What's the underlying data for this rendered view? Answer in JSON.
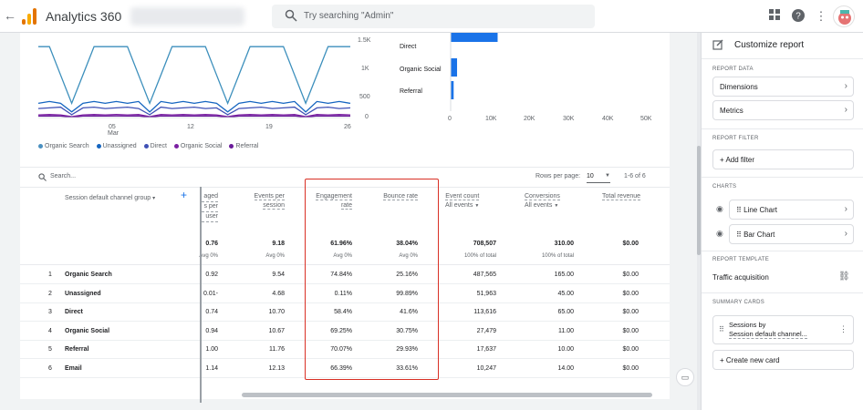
{
  "topbar": {
    "product": "Analytics 360",
    "search_placeholder": "Try searching \"Admin\""
  },
  "chart": {
    "y_ticks": [
      "1.5K",
      "1K",
      "500",
      "0"
    ],
    "x_ticks": [
      "05",
      "12",
      "19",
      "26"
    ],
    "x_month": "Mar",
    "legend": [
      {
        "label": "Organic Search",
        "color": "#4a90c0"
      },
      {
        "label": "Unassigned",
        "color": "#1565c0"
      },
      {
        "label": "Direct",
        "color": "#3f51b5"
      },
      {
        "label": "Organic Social",
        "color": "#7b1fa2"
      },
      {
        "label": "Referral",
        "color": "#6a1b9a"
      }
    ],
    "bar_categories": [
      "Direct",
      "Organic Social",
      "Referral"
    ],
    "bar_values": [
      11000,
      1500,
      700
    ],
    "bar_ticks": [
      "0",
      "10K",
      "20K",
      "30K",
      "40K",
      "50K"
    ],
    "bar_color": "#1a73e8",
    "line_colors": [
      "#3c8fbc",
      "#1565c0",
      "#3f51b5",
      "#7b1fa2",
      "#6a1b9a"
    ]
  },
  "table": {
    "search_placeholder": "Search...",
    "rows_per_page_label": "Rows per page:",
    "rows_per_page": "10",
    "range": "1-6 of 6",
    "dimension_header": "Session default channel group",
    "col_partial": [
      "aged",
      "s per",
      "user"
    ],
    "col_events_per_session": [
      "Events per",
      "session"
    ],
    "col_engagement_rate": [
      "Engagement",
      "rate"
    ],
    "col_bounce_rate": "Bounce rate",
    "col_event_count": "Event count",
    "col_event_count_sub": "All events",
    "col_conversions": "Conversions",
    "col_conversions_sub": "All events",
    "col_total_revenue": "Total revenue",
    "totals": {
      "partial": "0.76",
      "partial_sub": "Avg 0%",
      "eps": "9.18",
      "eps_sub": "Avg 0%",
      "engagement": "61.96%",
      "engagement_sub": "Avg 0%",
      "bounce": "38.04%",
      "bounce_sub": "Avg 0%",
      "events": "708,507",
      "events_sub": "100% of total",
      "conversions": "310.00",
      "conversions_sub": "100% of total",
      "revenue": "$0.00"
    },
    "rows": [
      {
        "n": "1",
        "name": "Organic Search",
        "partial": "0.92",
        "eps": "9.54",
        "eng": "74.84%",
        "bounce": "25.16%",
        "events": "487,565",
        "conv": "165.00",
        "rev": "$0.00"
      },
      {
        "n": "2",
        "name": "Unassigned",
        "partial": "-0.01",
        "eps": "4.68",
        "eng": "0.11%",
        "bounce": "99.89%",
        "events": "51,963",
        "conv": "45.00",
        "rev": "$0.00"
      },
      {
        "n": "3",
        "name": "Direct",
        "partial": "0.74",
        "eps": "10.70",
        "eng": "58.4%",
        "bounce": "41.6%",
        "events": "113,616",
        "conv": "65.00",
        "rev": "$0.00"
      },
      {
        "n": "4",
        "name": "Organic Social",
        "partial": "0.94",
        "eps": "10.67",
        "eng": "69.25%",
        "bounce": "30.75%",
        "events": "27,479",
        "conv": "11.00",
        "rev": "$0.00"
      },
      {
        "n": "5",
        "name": "Referral",
        "partial": "1.00",
        "eps": "11.76",
        "eng": "70.07%",
        "bounce": "29.93%",
        "events": "17,637",
        "conv": "10.00",
        "rev": "$0.00"
      },
      {
        "n": "6",
        "name": "Email",
        "partial": "1.14",
        "eps": "12.13",
        "eng": "66.39%",
        "bounce": "33.61%",
        "events": "10,247",
        "conv": "14.00",
        "rev": "$0.00"
      }
    ]
  },
  "panel": {
    "title": "Customize report",
    "report_data_label": "REPORT DATA",
    "dimensions": "Dimensions",
    "metrics": "Metrics",
    "report_filter_label": "REPORT FILTER",
    "add_filter": "+ Add filter",
    "charts_label": "CHARTS",
    "line_chart": "Line Chart",
    "bar_chart": "Bar Chart",
    "report_template_label": "REPORT TEMPLATE",
    "template_name": "Traffic acquisition",
    "summary_cards_label": "SUMMARY CARDS",
    "card_title_1": "Sessions by",
    "card_title_2": "Session default channel...",
    "create_card": "+ Create new card"
  }
}
